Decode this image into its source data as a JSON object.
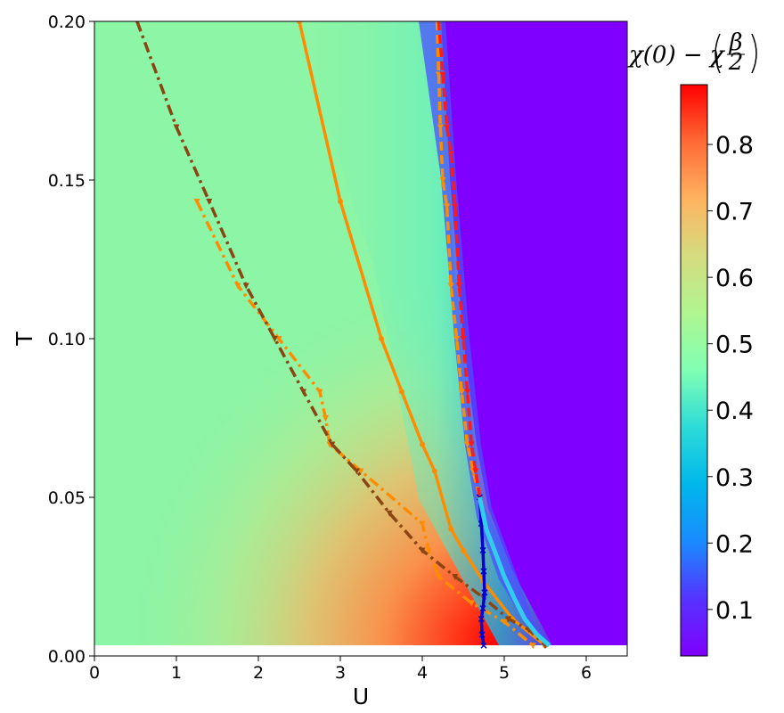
{
  "chart_data": {
    "type": "heatmap",
    "title": "",
    "xlabel": "U",
    "ylabel": "T",
    "xlim": [
      0,
      6.5
    ],
    "ylim": [
      0,
      0.2
    ],
    "x_ticks": [
      "0",
      "1",
      "2",
      "3",
      "4",
      "5",
      "6"
    ],
    "y_ticks": [
      "0.00",
      "0.05",
      "0.10",
      "0.15",
      "0.20"
    ],
    "colorbar": {
      "label": "χ(0) − χ(β/2)",
      "label_main": "χ(0) − χ",
      "label_frac_num": "β",
      "label_frac_den": "2",
      "range": [
        0.03,
        0.89
      ],
      "ticks": [
        "0.1",
        "0.2",
        "0.3",
        "0.4",
        "0.5",
        "0.6",
        "0.7",
        "0.8"
      ],
      "colormap": "rainbow"
    },
    "heatmap_regions": [
      {
        "description_color": "#7f00ff",
        "value": 0.03,
        "region": "metallic side, U beyond boundary"
      },
      {
        "description_color": "#ff0000",
        "value": 0.89,
        "region": "max near U≈4.8, T≈0.005"
      }
    ],
    "series": [
      {
        "color": "#ff8c00",
        "style": "solid",
        "marker": "dot",
        "x": [
          2.5,
          3.0,
          3.5,
          3.75,
          4.0,
          4.15,
          4.35,
          4.5,
          4.75,
          5.1,
          5.5
        ],
        "y": [
          0.2,
          0.1433,
          0.1,
          0.0833,
          0.0667,
          0.0583,
          0.04,
          0.0333,
          0.0233,
          0.0117,
          0.0033
        ]
      },
      {
        "color": "#ff8c00",
        "style": "dashdot",
        "marker": "triangle",
        "x": [
          1.25,
          1.75,
          2.25,
          2.75,
          2.82,
          2.87,
          3.25,
          4.0,
          4.08,
          4.2,
          4.6,
          5.0,
          5.35
        ],
        "y": [
          0.1433,
          0.1167,
          0.1,
          0.0833,
          0.075,
          0.0667,
          0.0583,
          0.0417,
          0.0333,
          0.025,
          0.0167,
          0.0108,
          0.0033
        ]
      },
      {
        "color": "#8b4513",
        "style": "dashdot",
        "marker": "triangle",
        "x": [
          0.52,
          1.0,
          1.4,
          1.85,
          2.2,
          2.55,
          2.9,
          3.2,
          3.6,
          4.0,
          4.4,
          4.75,
          5.05,
          5.3,
          5.5
        ],
        "y": [
          0.2,
          0.1667,
          0.1433,
          0.1167,
          0.1,
          0.0833,
          0.0667,
          0.0583,
          0.045,
          0.0333,
          0.025,
          0.0183,
          0.0117,
          0.0083,
          0.0033
        ]
      },
      {
        "color": "#ff8c00",
        "style": "dashed",
        "marker": "triangle",
        "x": [
          4.18,
          4.2,
          4.22,
          4.25,
          4.3,
          4.35,
          4.42,
          4.48,
          4.55,
          4.62,
          4.7
        ],
        "y": [
          0.2,
          0.1833,
          0.1667,
          0.15,
          0.1417,
          0.1167,
          0.1,
          0.0833,
          0.0667,
          0.0583,
          0.05
        ]
      },
      {
        "color": "#ff1a1a",
        "style": "dashed",
        "marker": "triangle",
        "x": [
          4.2,
          4.25,
          4.3,
          4.35,
          4.4,
          4.45,
          4.5,
          4.55,
          4.6,
          4.65,
          4.7
        ],
        "y": [
          0.2,
          0.1833,
          0.1667,
          0.1583,
          0.1417,
          0.1167,
          0.1,
          0.0833,
          0.0667,
          0.0583,
          0.05
        ]
      },
      {
        "color": "#0000d0",
        "style": "solid",
        "marker": "x",
        "x": [
          4.7,
          4.72,
          4.74,
          4.75,
          4.76,
          4.74,
          4.72,
          4.73,
          4.75
        ],
        "y": [
          0.05,
          0.0417,
          0.0333,
          0.0267,
          0.02,
          0.015,
          0.0117,
          0.0067,
          0.0033
        ]
      },
      {
        "color": "#33ccee",
        "style": "solid",
        "marker": "none",
        "x": [
          4.7,
          4.78,
          4.88,
          5.0,
          5.12,
          5.25,
          5.4,
          5.55
        ],
        "y": [
          0.05,
          0.04,
          0.0333,
          0.025,
          0.0183,
          0.0117,
          0.0067,
          0.0033
        ]
      }
    ]
  }
}
